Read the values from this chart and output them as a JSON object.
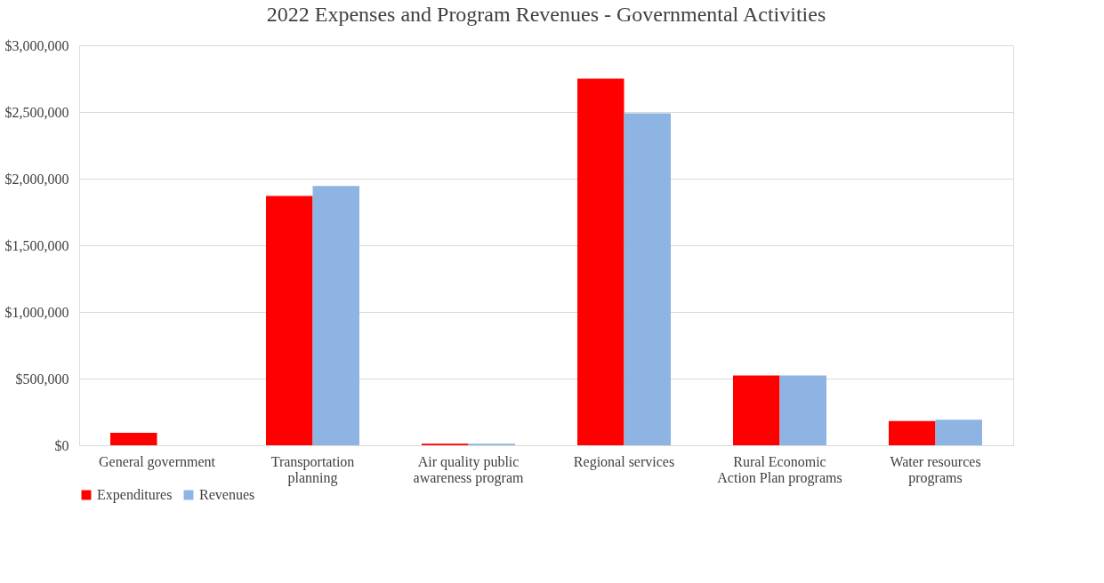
{
  "chart_data": {
    "type": "bar",
    "title": "2022 Expenses and Program Revenues - Governmental Activities",
    "categories": [
      "General government",
      "Transportation planning",
      "Air quality public awareness program",
      "Regional services",
      "Rural Economic Action Plan programs",
      "Water resources programs"
    ],
    "series": [
      {
        "name": "Expenditures",
        "color": "#ff0000",
        "values": [
          93000,
          1870000,
          12000,
          2750000,
          523000,
          181000
        ]
      },
      {
        "name": "Revenues",
        "color": "#8eb4e3",
        "values": [
          0,
          1945000,
          12000,
          2490000,
          523000,
          192000
        ]
      }
    ],
    "ylim": [
      0,
      3000000
    ],
    "yticks": [
      {
        "value": 0,
        "label": "$0"
      },
      {
        "value": 500000,
        "label": "$500,000"
      },
      {
        "value": 1000000,
        "label": "$1,000,000"
      },
      {
        "value": 1500000,
        "label": "$1,500,000"
      },
      {
        "value": 2000000,
        "label": "$2,000,000"
      },
      {
        "value": 2500000,
        "label": "$2,500,000"
      },
      {
        "value": 3000000,
        "label": "$3,000,000"
      }
    ],
    "grid": "y",
    "legend": "bottom"
  }
}
